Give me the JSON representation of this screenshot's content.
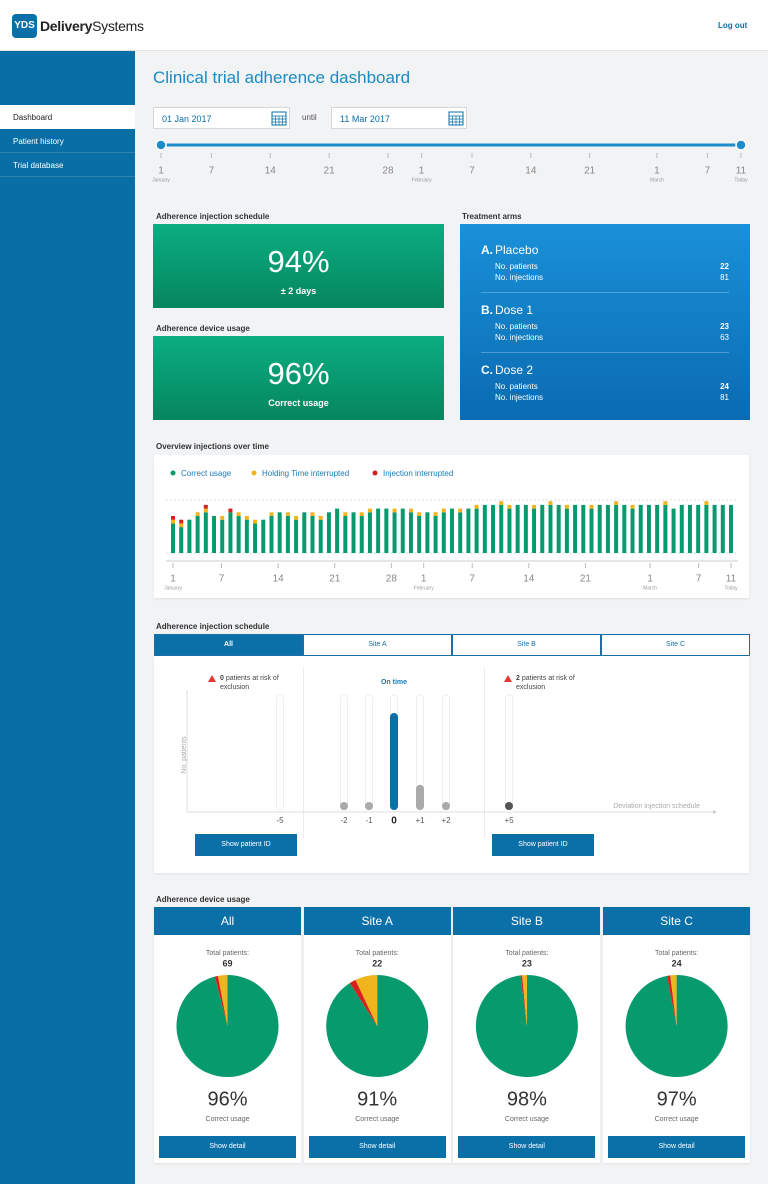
{
  "header": {
    "logo_badge": "YDS",
    "logo_bold": "Delivery",
    "logo_light": "Systems",
    "logout": "Log out"
  },
  "sidebar": {
    "items": [
      "Dashboard",
      "Patient history",
      "Trial database"
    ],
    "active": 0
  },
  "page_title": "Clinical trial adherence dashboard",
  "date_range": {
    "from": "01 Jan 2017",
    "until": "until",
    "to": "11 Mar 2017"
  },
  "timeline": {
    "ticks": [
      {
        "day": 1,
        "sub": "January"
      },
      {
        "day": 7
      },
      {
        "day": 14
      },
      {
        "day": 21
      },
      {
        "day": 28
      },
      {
        "day": 1,
        "sub": "February"
      },
      {
        "day": 7
      },
      {
        "day": 14
      },
      {
        "day": 21
      },
      {
        "day": 1,
        "sub": "March"
      },
      {
        "day": 7
      },
      {
        "day": 11,
        "sub": "Today"
      }
    ]
  },
  "summary": {
    "schedule": {
      "title": "Adherence injection schedule",
      "value": "94%",
      "caption": "± 2 days"
    },
    "device": {
      "title": "Adherence device usage",
      "value": "96%",
      "caption": "Correct usage"
    }
  },
  "arms": {
    "title": "Treatment arms",
    "patients_label": "No. patients",
    "injections_label": "No. injections",
    "items": [
      {
        "letter": "A.",
        "name": "Placebo",
        "patients": 22,
        "injections": 81
      },
      {
        "letter": "B.",
        "name": "Dose 1",
        "patients": 23,
        "injections": 63
      },
      {
        "letter": "C.",
        "name": "Dose 2",
        "patients": 24,
        "injections": 81
      }
    ]
  },
  "device_usage_title": "Adherence device usage",
  "chart_data": [
    {
      "type": "bar",
      "stacked": true,
      "title": "Overview injections over time",
      "series": [
        {
          "name": "Correct usage",
          "color": "#079a6c",
          "values": [
            8,
            7,
            9,
            10,
            11,
            10,
            9,
            11,
            10,
            9,
            8,
            9,
            10,
            11,
            10,
            9,
            11,
            10,
            9,
            11,
            12,
            10,
            11,
            10,
            11,
            12,
            12,
            11,
            12,
            11,
            10,
            11,
            10,
            11,
            12,
            11,
            12,
            12,
            13,
            13,
            13,
            12,
            13,
            13,
            12,
            13,
            13,
            13,
            12,
            13,
            13,
            12,
            13,
            13,
            13,
            13,
            12,
            13,
            13,
            13,
            13,
            12,
            13,
            13,
            13,
            13,
            13,
            13,
            13
          ]
        },
        {
          "name": "Holding Time interrupted",
          "color": "#f0b41c",
          "values": [
            1,
            1,
            0,
            1,
            1,
            0,
            1,
            0,
            1,
            1,
            1,
            0,
            1,
            0,
            1,
            1,
            0,
            1,
            1,
            0,
            0,
            1,
            0,
            1,
            1,
            0,
            0,
            1,
            0,
            1,
            1,
            0,
            1,
            1,
            0,
            1,
            0,
            1,
            0,
            0,
            1,
            1,
            0,
            0,
            1,
            0,
            1,
            0,
            1,
            0,
            0,
            1,
            0,
            0,
            1,
            0,
            1,
            0,
            0,
            0,
            1,
            0,
            0,
            0,
            0,
            1,
            0,
            0,
            0
          ]
        },
        {
          "name": "Injection interrupted",
          "color": "#d71f1f",
          "values": [
            1,
            1,
            0,
            0,
            1,
            0,
            0,
            1,
            0,
            0,
            0,
            0,
            0,
            0,
            0,
            0,
            0,
            0,
            0,
            0,
            0,
            0,
            0,
            0,
            0,
            0,
            0,
            0,
            0,
            0,
            0,
            0,
            0,
            0,
            0,
            0,
            0,
            0,
            0,
            0,
            0,
            0,
            0,
            0,
            0,
            0,
            0,
            0,
            0,
            0,
            0,
            0,
            0,
            0,
            0,
            0,
            0,
            0,
            0,
            0,
            0,
            0,
            0,
            0,
            0,
            0,
            0,
            0,
            0
          ]
        }
      ]
    },
    {
      "type": "bar",
      "title": "Adherence injection schedule",
      "tabs": [
        "All",
        "Site A",
        "Site B",
        "Site C"
      ],
      "active_tab": 0,
      "categories": [
        "-5",
        "-2",
        "-1",
        "0",
        "+1",
        "+2",
        "+5"
      ],
      "values": [
        0,
        1,
        2,
        50,
        13,
        1,
        2
      ],
      "colors": [
        "#aaaaaa",
        "#aaaaaa",
        "#aaaaaa",
        "#0b6fa8",
        "#aaaaaa",
        "#aaaaaa",
        "#555555"
      ],
      "ylabel": "No. patients",
      "xlabel": "Deviation injection schedule",
      "center_label": "On time",
      "risk": [
        {
          "count": 0,
          "text": "patients at risk of exclusion"
        },
        {
          "count": 2,
          "text": "patients at risk of exclusion"
        }
      ],
      "button": "Show patient ID"
    },
    {
      "type": "pie",
      "title": "All",
      "total_label": "Total patients:",
      "total": 69,
      "values": [
        96,
        1,
        3
      ],
      "colors": [
        "#079a6c",
        "#d71f1f",
        "#f0b41c"
      ],
      "value_labels": [
        "96%",
        null,
        null
      ],
      "caption": "Correct usage",
      "button": "Show detail"
    },
    {
      "type": "pie",
      "title": "Site A",
      "total_label": "Total patients:",
      "total": 22,
      "values": [
        91,
        2,
        7
      ],
      "colors": [
        "#079a6c",
        "#d71f1f",
        "#f0b41c"
      ],
      "value_labels": [
        "91%",
        null,
        null
      ],
      "caption": "Correct usage",
      "button": "Show detail"
    },
    {
      "type": "pie",
      "title": "Site B",
      "total_label": "Total patients:",
      "total": 23,
      "values": [
        98,
        0.5,
        1.5
      ],
      "colors": [
        "#079a6c",
        "#d71f1f",
        "#f0b41c"
      ],
      "value_labels": [
        "98%",
        null,
        null
      ],
      "caption": "Correct usage",
      "button": "Show detail"
    },
    {
      "type": "pie",
      "title": "Site C",
      "total_label": "Total patients:",
      "total": 24,
      "values": [
        97,
        1,
        2
      ],
      "colors": [
        "#079a6c",
        "#d71f1f",
        "#f0b41c"
      ],
      "value_labels": [
        "97%",
        null,
        null
      ],
      "caption": "Correct usage",
      "button": "Show detail"
    }
  ]
}
